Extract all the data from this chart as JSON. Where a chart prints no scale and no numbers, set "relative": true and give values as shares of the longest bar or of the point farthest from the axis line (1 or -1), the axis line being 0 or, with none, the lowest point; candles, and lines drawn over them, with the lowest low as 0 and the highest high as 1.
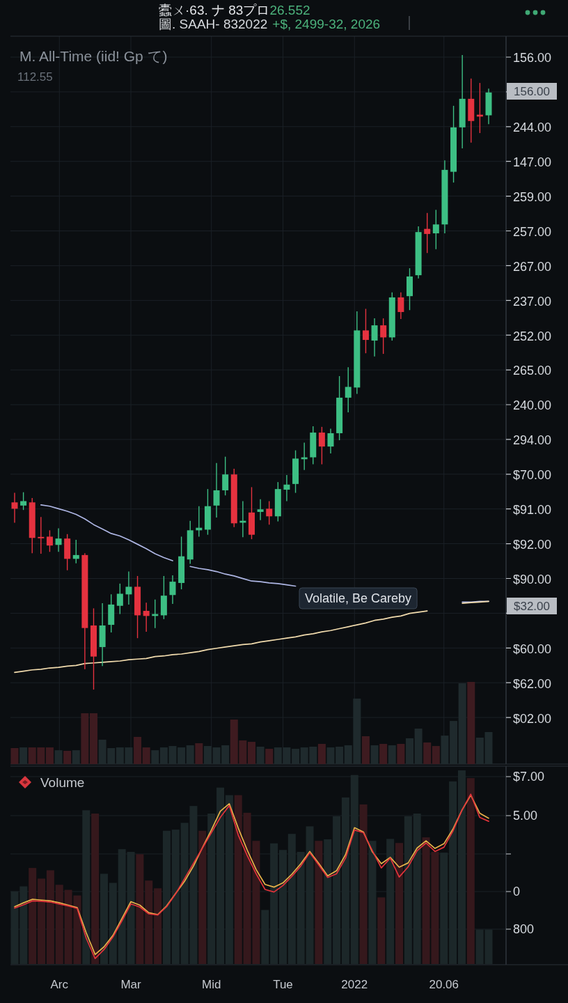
{
  "chart_data": [
    {
      "type": "candlestick",
      "title": "M. All-Time (iid! Gp て)",
      "subtitle": "112.55",
      "relative": true,
      "categories": [
        null,
        null,
        null,
        null,
        null,
        null,
        null,
        null,
        null,
        null,
        null,
        null,
        null,
        null,
        null,
        null,
        null,
        null,
        null,
        null,
        null,
        null,
        null,
        null,
        null,
        null,
        null,
        null,
        null,
        null,
        null,
        null,
        null,
        null,
        null,
        null,
        null,
        null,
        null,
        null,
        null,
        null,
        null,
        null,
        null,
        null,
        null,
        null,
        null,
        null,
        null,
        null,
        null,
        null,
        null
      ],
      "ohlc": [
        [
          0.295,
          0.31,
          0.263,
          0.285
        ],
        [
          0.29,
          0.311,
          0.283,
          0.297
        ],
        [
          0.295,
          0.302,
          0.215,
          0.239
        ],
        [
          0.24,
          0.272,
          0.214,
          0.239
        ],
        [
          0.241,
          0.251,
          0.217,
          0.227
        ],
        [
          0.228,
          0.254,
          0.217,
          0.238
        ],
        [
          0.238,
          0.245,
          0.188,
          0.206
        ],
        [
          0.206,
          0.236,
          0.199,
          0.212
        ],
        [
          0.212,
          0.215,
          0.032,
          0.097
        ],
        [
          0.101,
          0.128,
          0,
          0.052
        ],
        [
          0.067,
          0.136,
          0.037,
          0.101
        ],
        [
          0.102,
          0.15,
          0.09,
          0.134
        ],
        [
          0.132,
          0.167,
          0.119,
          0.151
        ],
        [
          0.15,
          0.186,
          0.134,
          0.162
        ],
        [
          0.162,
          0.179,
          0.081,
          0.117
        ],
        [
          0.124,
          0.137,
          0.091,
          0.116
        ],
        [
          0.116,
          0.142,
          0.097,
          0.119
        ],
        [
          0.117,
          0.179,
          0.111,
          0.148
        ],
        [
          0.149,
          0.18,
          0.135,
          0.17
        ],
        [
          0.168,
          0.241,
          0.158,
          0.21
        ],
        [
          0.205,
          0.266,
          0.198,
          0.251
        ],
        [
          0.251,
          0.289,
          0.241,
          0.255
        ],
        [
          0.252,
          0.316,
          0.244,
          0.289
        ],
        [
          0.29,
          0.357,
          0.271,
          0.314
        ],
        [
          0.314,
          0.367,
          0.306,
          0.339
        ],
        [
          0.339,
          0.348,
          0.256,
          0.262
        ],
        [
          0.263,
          0.297,
          0.24,
          0.266
        ],
        [
          0.279,
          0.319,
          0.237,
          0.244
        ],
        [
          0.28,
          0.3,
          0.267,
          0.284
        ],
        [
          0.285,
          0.297,
          0.26,
          0.273
        ],
        [
          0.273,
          0.327,
          0.265,
          0.316
        ],
        [
          0.315,
          0.338,
          0.297,
          0.323
        ],
        [
          0.324,
          0.377,
          0.31,
          0.364
        ],
        [
          0.363,
          0.389,
          0.346,
          0.366
        ],
        [
          0.366,
          0.415,
          0.355,
          0.405
        ],
        [
          0.405,
          0.414,
          0.355,
          0.383
        ],
        [
          0.383,
          0.411,
          0.372,
          0.404
        ],
        [
          0.404,
          0.494,
          0.393,
          0.46
        ],
        [
          0.46,
          0.508,
          0.437,
          0.477
        ],
        [
          0.476,
          0.596,
          0.466,
          0.566
        ],
        [
          0.566,
          0.6,
          0.53,
          0.551
        ],
        [
          0.55,
          0.585,
          0.525,
          0.574
        ],
        [
          0.574,
          0.585,
          0.529,
          0.555
        ],
        [
          0.555,
          0.626,
          0.55,
          0.618
        ],
        [
          0.618,
          0.626,
          0.584,
          0.595
        ],
        [
          0.62,
          0.664,
          0.598,
          0.651
        ],
        [
          0.653,
          0.73,
          0.648,
          0.721
        ],
        [
          0.726,
          0.751,
          0.688,
          0.718
        ],
        [
          0.719,
          0.756,
          0.694,
          0.733
        ],
        [
          0.733,
          0.834,
          0.719,
          0.819
        ],
        [
          0.816,
          0.92,
          0.799,
          0.886
        ],
        [
          0.886,
          1,
          0.853,
          0.931
        ],
        [
          0.931,
          0.963,
          0.862,
          0.896
        ],
        [
          0.906,
          0.956,
          0.877,
          0.903
        ],
        [
          0.905,
          0.947,
          0.891,
          0.941
        ]
      ],
      "colors": [
        "#e5323f",
        "#3dbf84",
        "#e5323f",
        "#e5323f",
        "#e5323f",
        "#3dbf84",
        "#e5323f",
        "#3dbf84",
        "#e5323f",
        "#e5323f",
        "#3dbf84",
        "#3dbf84",
        "#3dbf84",
        "#3dbf84",
        "#e5323f",
        "#e5323f",
        "#3dbf84",
        "#3dbf84",
        "#3dbf84",
        "#3dbf84",
        "#3dbf84",
        "#3dbf84",
        "#3dbf84",
        "#3dbf84",
        "#3dbf84",
        "#e5323f",
        "#3dbf84",
        "#e5323f",
        "#3dbf84",
        "#e5323f",
        "#3dbf84",
        "#3dbf84",
        "#3dbf84",
        "#3dbf84",
        "#3dbf84",
        "#e5323f",
        "#3dbf84",
        "#3dbf84",
        "#3dbf84",
        "#3dbf84",
        "#e5323f",
        "#3dbf84",
        "#e5323f",
        "#3dbf84",
        "#e5323f",
        "#3dbf84",
        "#3dbf84",
        "#e5323f",
        "#3dbf84",
        "#3dbf84",
        "#3dbf84",
        "#3dbf84",
        "#e5323f",
        "#e5323f",
        "#3dbf84"
      ],
      "series": [
        {
          "type": "line",
          "color": "#aeb6e4",
          "values": [
            null,
            null,
            null,
            0.291,
            0.289,
            0.285,
            0.281,
            0.276,
            0.269,
            0.26,
            0.253,
            0.246,
            0.242,
            0.236,
            0.229,
            0.222,
            0.214,
            0.208,
            0.203,
            null,
            0.194,
            0.191,
            0.189,
            0.186,
            0.182,
            0.179,
            0.175,
            0.171,
            0.17,
            0.168,
            0.167,
            0.165,
            0.163,
            null,
            null,
            null,
            null,
            null,
            null,
            null,
            null,
            null,
            null,
            null,
            null,
            null,
            null,
            null,
            null,
            null,
            null,
            0.138,
            0.138,
            0.139,
            0.139
          ]
        },
        {
          "type": "line",
          "color": "#f2dcae",
          "values": [
            0.027,
            0.029,
            0.031,
            0.032,
            0.034,
            0.035,
            0.037,
            0.038,
            0.041,
            0.042,
            0.043,
            0.044,
            0.045,
            0.047,
            0.048,
            0.049,
            0.052,
            0.053,
            0.055,
            0.056,
            0.058,
            0.06,
            0.063,
            0.065,
            0.067,
            0.069,
            0.071,
            0.072,
            0.075,
            0.077,
            0.079,
            0.081,
            0.083,
            0.086,
            0.088,
            0.091,
            0.093,
            0.096,
            0.099,
            0.102,
            0.105,
            0.109,
            0.111,
            0.114,
            0.116,
            0.12,
            0.122,
            0.124,
            null,
            null,
            null,
            0.136,
            0.137,
            0.138,
            0.139
          ]
        }
      ],
      "grid": true,
      "annotations": [
        "蠹ㄨ·63. ナ 83プロ",
        "26.552",
        "圖. SAAH- 832022",
        "+$, 2499-32, 2026",
        "Volatile, Be Careby",
        "156.00",
        "244.00",
        "147.00",
        "259.00",
        "257.00",
        "267.00",
        "237.00",
        "252.00",
        "265.00",
        "240.00",
        "294.00",
        "$70.00",
        "$91.00",
        "$92.00",
        "$90.00",
        "$60.00",
        "$62.00",
        "$02.00",
        "156.00",
        "$32.00"
      ]
    },
    {
      "type": "bar",
      "relative": true,
      "categories": [
        null,
        null,
        null,
        null,
        null,
        null,
        null,
        null,
        null,
        null,
        null,
        null,
        null,
        null,
        null,
        null,
        null,
        null,
        null,
        null,
        null,
        null,
        null,
        null,
        null,
        null,
        null,
        null,
        null,
        null,
        null,
        null,
        null,
        null,
        null,
        null,
        null,
        null,
        null,
        null,
        null,
        null,
        null,
        null,
        null,
        null,
        null,
        null,
        null,
        null,
        null,
        null,
        null,
        null,
        null
      ],
      "colors": [
        "#3e1b20",
        "#1f2a2d",
        "#3e1b20",
        "#3e1b20",
        "#3e1b20",
        "#1f2a2d",
        "#3e1b20",
        "#1f2a2d",
        "#3e1b20",
        "#3e1b20",
        "#1f2a2d",
        "#1f2a2d",
        "#1f2a2d",
        "#1f2a2d",
        "#3e1b20",
        "#3e1b20",
        "#1f2a2d",
        "#1f2a2d",
        "#1f2a2d",
        "#1f2a2d",
        "#1f2a2d",
        "#3e1b20",
        "#1f2a2d",
        "#1f2a2d",
        "#1f2a2d",
        "#3e1b20",
        "#3e1b20",
        "#3e1b20",
        "#1f2a2d",
        "#3e1b20",
        "#1f2a2d",
        "#1f2a2d",
        "#1f2a2d",
        "#1f2a2d",
        "#1f2a2d",
        "#3e1b20",
        "#1f2a2d",
        "#1f2a2d",
        "#1f2a2d",
        "#1f2a2d",
        "#3e1b20",
        "#1f2a2d",
        "#3e1b20",
        "#1f2a2d",
        "#3e1b20",
        "#1f2a2d",
        "#1f2a2d",
        "#3e1b20",
        "#3e1b20",
        "#1f2a2d",
        "#1f2a2d",
        "#1f2a2d",
        "#3e1b20",
        "#1f2a2d",
        "#1f2a2d"
      ],
      "values": [
        0.195,
        0.203,
        0.203,
        0.203,
        0.203,
        0.169,
        0.161,
        0.169,
        0.619,
        0.619,
        0.297,
        0.195,
        0.203,
        0.203,
        0.331,
        0.203,
        0.169,
        0.203,
        0.22,
        0.203,
        0.229,
        0.254,
        0.22,
        0.203,
        0.229,
        0.542,
        0.288,
        0.271,
        0.212,
        0.186,
        0.203,
        0.203,
        0.186,
        0.203,
        0.212,
        0.246,
        0.203,
        0.212,
        0.229,
        0.797,
        0.339,
        0.229,
        0.246,
        0.229,
        0.246,
        0.314,
        0.432,
        0.263,
        0.22,
        0.347,
        0.525,
        0.983,
        1,
        0.322,
        0.39
      ]
    },
    {
      "type": "bar",
      "title": "Volume",
      "relative": true,
      "categories": [
        null,
        null,
        null,
        null,
        null,
        "Arc",
        null,
        null,
        null,
        null,
        null,
        null,
        null,
        "Mar",
        null,
        null,
        null,
        null,
        null,
        null,
        null,
        null,
        "Mid",
        null,
        null,
        null,
        null,
        null,
        null,
        null,
        "Tue",
        null,
        null,
        null,
        null,
        null,
        null,
        null,
        "2022",
        null,
        null,
        null,
        null,
        null,
        null,
        null,
        null,
        null,
        "20.06",
        null,
        null,
        null,
        null,
        null
      ],
      "series": [
        {
          "colors": [
            "#1c2729",
            "#1c2729",
            "#35181c",
            "#35181c",
            "#35181c",
            "#35181c",
            "#35181c",
            "#35181c",
            "#1c2729",
            "#35181c",
            "#1c2729",
            "#1c2729",
            "#1c2729",
            "#1c2729",
            "#35181c",
            "#35181c",
            "#35181c",
            "#1c2729",
            "#1c2729",
            "#1c2729",
            "#1c2729",
            "#35181c",
            "#1c2729",
            "#1c2729",
            "#1c2729",
            "#35181c",
            "#35181c",
            "#35181c",
            "#1c2729",
            "#1c2729",
            "#1c2729",
            "#1c2729",
            "#1c2729",
            "#1c2729",
            "#35181c",
            "#1c2729",
            "#1c2729",
            "#1c2729",
            "#1c2729",
            "#35181c",
            "#1c2729",
            "#35181c",
            "#1c2729",
            "#35181c",
            "#1c2729",
            "#1c2729",
            "#35181c",
            "#35181c",
            "#1c2729",
            "#1c2729",
            "#1c2729",
            "#35181c",
            "#1c2729",
            "#1c2729"
          ],
          "values": [
            0.375,
            0.401,
            0.496,
            0.441,
            0.484,
            0.409,
            0.383,
            0.354,
            0.794,
            0.777,
            0.466,
            0.419,
            0.593,
            0.579,
            0.567,
            0.431,
            0.391,
            0.688,
            0.694,
            0.729,
            0.816,
            0.688,
            0.777,
            0.911,
            0.872,
            0.872,
            0.781,
            0.636,
            0.279,
            0.623,
            0.589,
            0.672,
            0.579,
            0.711,
            0.636,
            0.644,
            0.763,
            0.86,
            0.976,
            0.824,
            0.636,
            0.344,
            0.646,
            0.625,
            0.763,
            0.777,
            0.654,
            0.579,
            0.575,
            0.943,
            1,
            0.96,
            0.178,
            0.178
          ]
        },
        {
          "type": "line",
          "color": "#e9b34a",
          "values": [
            0.296,
            0.316,
            0.334,
            0.33,
            0.326,
            0.316,
            0.304,
            0.291,
            0.162,
            0.049,
            0.089,
            0.148,
            0.235,
            0.322,
            0.304,
            0.265,
            0.255,
            0.3,
            0.364,
            0.427,
            0.506,
            0.601,
            0.692,
            0.789,
            0.828,
            0.702,
            0.589,
            0.488,
            0.411,
            0.397,
            0.419,
            0.464,
            0.518,
            0.581,
            0.52,
            0.455,
            0.482,
            0.565,
            0.704,
            0.682,
            0.579,
            0.518,
            0.551,
            0.5,
            0.522,
            0.599,
            0.636,
            0.597,
            0.621,
            0.696,
            0.793,
            0.872,
            0.779,
            0.753
          ]
        },
        {
          "type": "line",
          "color": "#e2333b",
          "values": [
            0.289,
            0.306,
            0.326,
            0.324,
            0.32,
            0.31,
            0.3,
            0.287,
            0.134,
            0.028,
            0.075,
            0.14,
            0.223,
            0.31,
            0.294,
            0.259,
            0.253,
            0.296,
            0.362,
            0.441,
            0.52,
            0.599,
            0.678,
            0.757,
            0.818,
            0.666,
            0.561,
            0.466,
            0.385,
            0.372,
            0.405,
            0.453,
            0.506,
            0.575,
            0.512,
            0.447,
            0.466,
            0.547,
            0.692,
            0.678,
            0.585,
            0.496,
            0.547,
            0.449,
            0.502,
            0.585,
            0.625,
            0.581,
            0.603,
            0.686,
            0.793,
            0.877,
            0.757,
            0.737
          ]
        }
      ],
      "grid": "y",
      "annotations": [
        "$7.00",
        "5.00",
        "0",
        "800"
      ]
    }
  ]
}
